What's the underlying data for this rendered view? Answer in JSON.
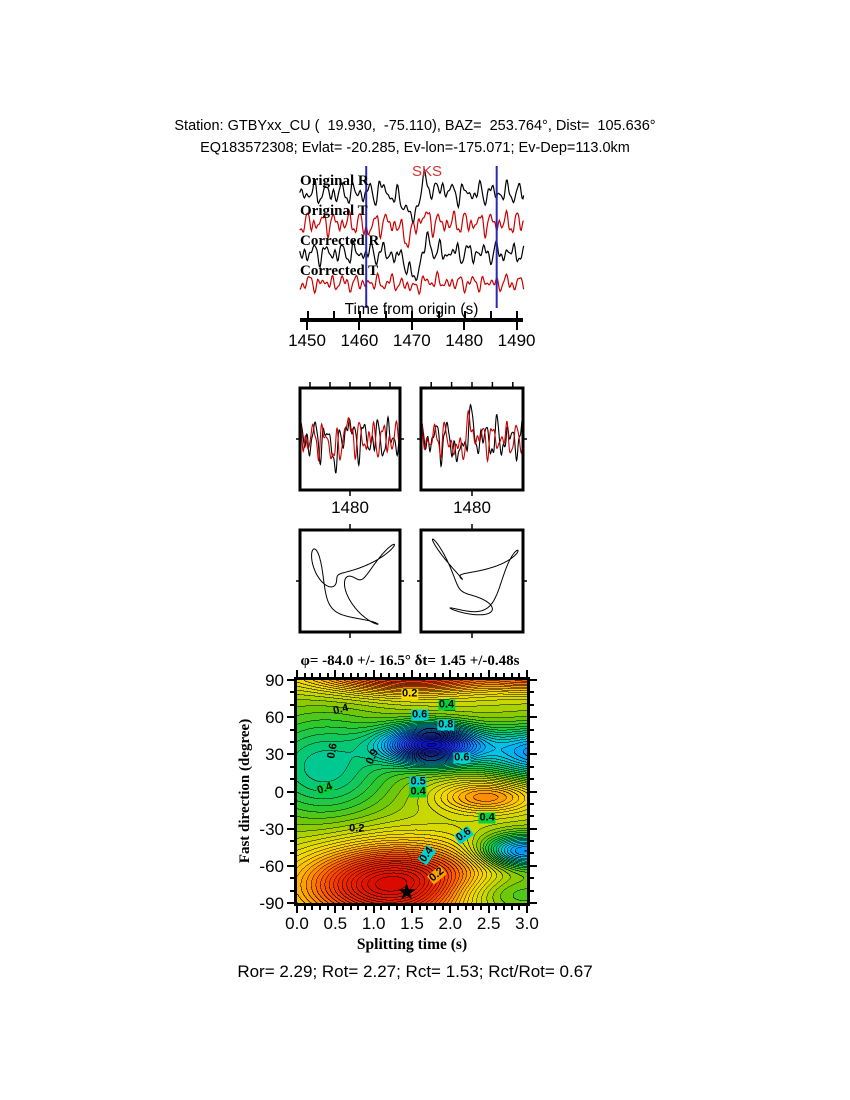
{
  "colors": {
    "trace_black": "#000000",
    "trace_red": "#CC0000",
    "window_line": "#2828B4",
    "sks_red": "#D43232",
    "label_yellow": "#FFD700",
    "label_green": "#00D23C",
    "label_cyan": "#00D2D2",
    "label_orange": "#FFA000"
  },
  "header": {
    "line1": "Station: GTBYxx_CU (  19.930,  -75.110), BAZ=  253.764°, Dist=  105.636°",
    "line2": "EQ183572308; Evlat= -20.285, Ev-lon=-175.071; Ev-Dep=113.0km"
  },
  "waveform_section": {
    "sks_label": "SKS",
    "trace_labels": [
      "Original R",
      "Original T",
      "Corrected R",
      "Corrected T"
    ],
    "axis_label": "Time from origin (s)",
    "axis_ticks": [
      "1450",
      "1460",
      "1470",
      "1480",
      "1490"
    ]
  },
  "panels": {
    "seismo_xlabels": [
      "1480",
      "1480"
    ]
  },
  "contour": {
    "title": "φ= -84.0 +/- 16.5° δt= 1.45 +/-0.48s",
    "ylabel": "Fast direction (degree)",
    "xlabel": "Splitting time (s)",
    "yticks": [
      "90",
      "60",
      "30",
      "0",
      "-30",
      "-60",
      "-90"
    ],
    "xticks": [
      "0.0",
      "0.5",
      "1.0",
      "1.5",
      "2.0",
      "2.5",
      "3.0"
    ]
  },
  "caption": "Ror= 2.29; Rot= 2.27; Rct= 1.53; Rct/Rot= 0.67",
  "chart_data": [
    {
      "id": "waveforms",
      "type": "line",
      "title": "Original and corrected R/T seismograms",
      "x_range": [
        1448.6,
        1491.5
      ],
      "xlabel": "Time from origin (s)",
      "xticks": [
        1450,
        1460,
        1470,
        1480,
        1490
      ],
      "window_times": [
        1461.3,
        1486.2
      ],
      "sks_time": 1470.5,
      "traces": [
        {
          "name": "Original R",
          "color": "#000000",
          "harmonics": [
            [
              6,
              0.38,
              0.2
            ],
            [
              4.5,
              0.57,
              1.5
            ],
            [
              3,
              0.82,
              2.6
            ],
            [
              2,
              1.15,
              0.9
            ]
          ],
          "pulses": [
            [
              -26,
              21.9,
              1.4
            ],
            [
              12,
              24.6,
              1.1
            ],
            [
              -6,
              18.8,
              0.9
            ],
            [
              6,
              27.9,
              1.0
            ],
            [
              5,
              16.5,
              0.8
            ]
          ]
        },
        {
          "name": "Original T",
          "color": "#CC0000",
          "harmonics": [
            [
              6,
              0.4,
              2.1
            ],
            [
              5,
              0.6,
              0.7
            ],
            [
              3,
              0.9,
              1.9
            ],
            [
              2,
              1.3,
              0.2
            ]
          ],
          "pulses": [
            [
              -15,
              21.2,
              1.5
            ],
            [
              7,
              24.2,
              1.2
            ],
            [
              -7,
              13.6,
              0.9
            ]
          ]
        },
        {
          "name": "Corrected R",
          "color": "#000000",
          "harmonics": [
            [
              5.5,
              0.37,
              0.6
            ],
            [
              4.5,
              0.55,
              2.0
            ],
            [
              3,
              0.85,
              0.1
            ],
            [
              2,
              1.2,
              2.2
            ]
          ],
          "pulses": [
            [
              -26,
              22.3,
              1.4
            ],
            [
              11,
              25.0,
              1.1
            ],
            [
              -5,
              19.2,
              0.8
            ]
          ]
        },
        {
          "name": "Corrected T",
          "color": "#CC0000",
          "harmonics": [
            [
              4,
              0.45,
              1.2
            ],
            [
              3,
              0.7,
              2.5
            ],
            [
              2.5,
              1.05,
              0.4
            ],
            [
              2,
              0.32,
              2.9
            ]
          ],
          "pulses": [
            [
              -4,
              22.0,
              1.5
            ],
            [
              3,
              26.0,
              1.0
            ]
          ]
        }
      ]
    },
    {
      "id": "compare-panels",
      "type": "line",
      "title": "Waveform comparison windows",
      "t_range": [
        0,
        20
      ],
      "center_tick": 1480,
      "panels": [
        {
          "traces": [
            {
              "color": "#000000",
              "harmonics": [
                [
                  12,
                  0.4,
                  0.6
                ],
                [
                  8,
                  0.63,
                  1.9
                ],
                [
                  5,
                  0.92,
                  0.1
                ],
                [
                  3,
                  1.3,
                  2.4
                ]
              ],
              "pulses": [
                [
                  -19,
                  7.4,
                  1.0
                ],
                [
                  17,
                  9.3,
                  0.9
                ]
              ]
            },
            {
              "color": "#CC0000",
              "harmonics": [
                [
                  10,
                  0.42,
                  1.3
                ],
                [
                  7,
                  0.66,
                  2.6
                ],
                [
                  5,
                  0.95,
                  0.9
                ],
                [
                  3,
                  1.25,
                  0.0
                ]
              ],
              "pulses": [
                [
                  -14,
                  7.0,
                  1.1
                ],
                [
                  12,
                  9.6,
                  1.0
                ]
              ]
            }
          ]
        },
        {
          "traces": [
            {
              "color": "#000000",
              "harmonics": [
                [
                  12,
                  0.41,
                  0.8
                ],
                [
                  8,
                  0.6,
                  2.1
                ],
                [
                  5,
                  0.95,
                  0.4
                ],
                [
                  3,
                  1.35,
                  2.7
                ]
              ],
              "pulses": [
                [
                  -20,
                  7.6,
                  1.0
                ],
                [
                  18,
                  9.4,
                  0.9
                ]
              ]
            },
            {
              "color": "#CC0000",
              "harmonics": [
                [
                  9,
                  0.43,
                  1.0
                ],
                [
                  7,
                  0.64,
                  2.3
                ],
                [
                  4,
                  0.9,
                  0.6
                ],
                [
                  3,
                  1.2,
                  0.2
                ]
              ],
              "pulses": [
                [
                  -13,
                  7.3,
                  1.1
                ],
                [
                  12,
                  9.6,
                  1.0
                ]
              ]
            }
          ]
        }
      ]
    },
    {
      "id": "particle-motion",
      "type": "line",
      "title": "Particle motion before/after correction",
      "panels": [
        {
          "xh": [
            [
              26,
              1,
              0.9
            ],
            [
              17,
              2,
              2.5
            ],
            [
              11,
              3,
              1.2
            ],
            [
              6,
              5,
              2.8
            ]
          ],
          "yh": [
            [
              24,
              1,
              2.3
            ],
            [
              18,
              2,
              0.5
            ],
            [
              12,
              3,
              2.9
            ],
            [
              7,
              5,
              1.4
            ]
          ]
        },
        {
          "xh": [
            [
              24,
              1,
              2.1
            ],
            [
              19,
              2,
              1.1
            ],
            [
              12,
              3,
              2.6
            ],
            [
              7,
              5,
              0.3
            ]
          ],
          "yh": [
            [
              26,
              1,
              0.2
            ],
            [
              15,
              2,
              2.3
            ],
            [
              12,
              3,
              1.2
            ],
            [
              6,
              5,
              2.6
            ]
          ]
        }
      ]
    },
    {
      "id": "splitting-map",
      "type": "heatmap",
      "title": "φ= -84.0 +/- 16.5° δt= 1.45 +/-0.48s",
      "xlabel": "Splitting time (s)",
      "ylabel": "Fast direction (degree)",
      "xlim": [
        0,
        3
      ],
      "ylim": [
        -90,
        90
      ],
      "xtick_values": [
        0.0,
        0.5,
        1.0,
        1.5,
        2.0,
        2.5,
        3.0
      ],
      "ytick_values": [
        90,
        60,
        30,
        0,
        -30,
        -60,
        -90
      ],
      "xtick_minor": 0.1,
      "ytick_minor": 10,
      "best_phi": -84.0,
      "phi_err": 16.5,
      "best_dt": 1.45,
      "dt_err": 0.48,
      "star": {
        "x": 1.43,
        "y": -81
      },
      "contour_interval": 0.06,
      "field_offset": 0.1,
      "gaussians": [
        [
          1.45,
          1.3,
          -75,
          1.15,
          30
        ],
        [
          1.15,
          1.5,
          97,
          1.3,
          16
        ],
        [
          0.5,
          3.1,
          93,
          0.5,
          12
        ],
        [
          -1.6,
          1.75,
          38,
          0.6,
          15
        ],
        [
          -0.5,
          0.35,
          20,
          0.9,
          42
        ],
        [
          -0.9,
          3.25,
          32,
          0.85,
          20
        ],
        [
          -0.95,
          2.95,
          -48,
          0.55,
          13
        ],
        [
          0.55,
          2.47,
          -4,
          0.62,
          13
        ],
        [
          -0.45,
          2.5,
          -82,
          0.9,
          18
        ]
      ],
      "palette": [
        [
          -1.6,
          "#0A0AB4"
        ],
        [
          -1.15,
          "#2041F0"
        ],
        [
          -0.8,
          "#0A8CFF"
        ],
        [
          -0.55,
          "#00C8E6"
        ],
        [
          -0.35,
          "#00C87D"
        ],
        [
          -0.15,
          "#2DC82D"
        ],
        [
          0.0,
          "#7DC800"
        ],
        [
          0.15,
          "#C8D700"
        ],
        [
          0.3,
          "#F0DC00"
        ],
        [
          0.45,
          "#FFC300"
        ],
        [
          0.6,
          "#FF9600"
        ],
        [
          0.8,
          "#FF5A00"
        ],
        [
          1.05,
          "#F02D00"
        ],
        [
          1.6,
          "#D20000"
        ]
      ],
      "contour_labels": [
        {
          "text": "0.2",
          "x": 1.47,
          "y": 79,
          "rot": 0,
          "bg": "yellow"
        },
        {
          "text": "0.4",
          "x": 1.95,
          "y": 70,
          "rot": 0,
          "bg": "green"
        },
        {
          "text": "0.6",
          "x": 1.6,
          "y": 62,
          "rot": 0,
          "bg": "cyan"
        },
        {
          "text": "0.8",
          "x": 1.94,
          "y": 54,
          "rot": 0,
          "bg": "cyan"
        },
        {
          "text": "0.4",
          "x": 0.57,
          "y": 66,
          "rot": 15,
          "bg": "none"
        },
        {
          "text": "0.6",
          "x": 0.47,
          "y": 33,
          "rot": 80,
          "bg": "none"
        },
        {
          "text": "0.9",
          "x": 0.99,
          "y": 28,
          "rot": 65,
          "bg": "none"
        },
        {
          "text": "0.6",
          "x": 2.15,
          "y": 27,
          "rot": 0,
          "bg": "cyan"
        },
        {
          "text": "0.5",
          "x": 1.58,
          "y": 8,
          "rot": 0,
          "bg": "cyan"
        },
        {
          "text": "0.4",
          "x": 1.58,
          "y": 0,
          "rot": 0,
          "bg": "green"
        },
        {
          "text": "0.4",
          "x": 0.36,
          "y": 2,
          "rot": 20,
          "bg": "green"
        },
        {
          "text": "0.2",
          "x": 0.78,
          "y": -30,
          "rot": 0,
          "bg": "none"
        },
        {
          "text": "0.4",
          "x": 2.48,
          "y": -21,
          "rot": 0,
          "bg": "green"
        },
        {
          "text": "0.6",
          "x": 2.18,
          "y": -35,
          "rot": 35,
          "bg": "cyan"
        },
        {
          "text": "0.4",
          "x": 1.69,
          "y": -51,
          "rot": 55,
          "bg": "cyan"
        },
        {
          "text": "0.2",
          "x": 1.83,
          "y": -67,
          "rot": 40,
          "bg": "orange"
        }
      ]
    }
  ]
}
